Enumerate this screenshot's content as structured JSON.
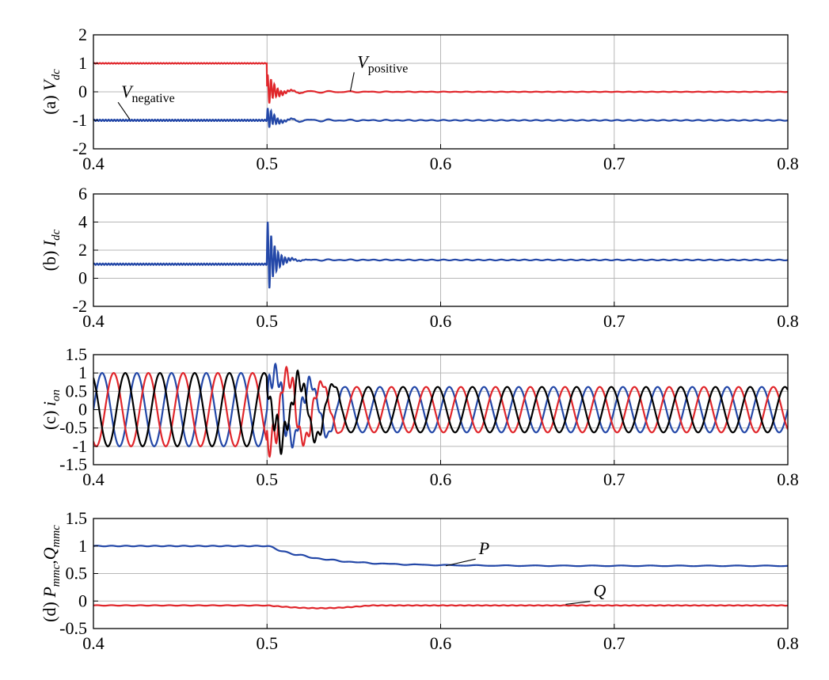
{
  "colors": {
    "red": "#e0262b",
    "blue": "#2448a8",
    "black": "#000000",
    "grid": "#b7b7b7"
  },
  "chart_data": [
    {
      "type": "line",
      "id": "a",
      "ylabel": {
        "prefix": "(a) ",
        "main": "V",
        "sub": "dc"
      },
      "xlim": [
        0.4,
        0.8
      ],
      "ylim": [
        -2,
        2
      ],
      "xticks": [
        0.4,
        0.5,
        0.6,
        0.7,
        0.8
      ],
      "xtick_labels": [
        "0.4",
        "0.5",
        "0.6",
        "0.7",
        "0.8"
      ],
      "yticks": [
        -2,
        -1,
        0,
        1,
        2
      ],
      "ytick_labels": [
        "-2",
        "-1",
        "0",
        "1",
        "2"
      ],
      "grid": true,
      "series": [
        {
          "name": "positive",
          "color": "red",
          "pre": 1.0,
          "post": 0.0,
          "ripple": 0.012,
          "ringAmp": 0.65,
          "ringDecay": 0.004,
          "ringFreq": 520
        },
        {
          "name": "negative",
          "color": "blue",
          "pre": -1.0,
          "post": -1.0,
          "ripple": 0.025,
          "ringAmp": 0.45,
          "ringDecay": 0.004,
          "ringFreq": 520
        }
      ],
      "annotations": [
        {
          "main": "V",
          "sub": "positive",
          "x": 0.552,
          "y": 0.85,
          "ax": 0.548,
          "ay": 0.02
        },
        {
          "main": "V",
          "sub": "negative",
          "x": 0.416,
          "y": -0.2,
          "ax": 0.421,
          "ay": -0.97
        }
      ]
    },
    {
      "type": "line",
      "id": "b",
      "ylabel": {
        "prefix": "(b) ",
        "main": "I",
        "sub": "dc"
      },
      "xlim": [
        0.4,
        0.8
      ],
      "ylim": [
        -2,
        6
      ],
      "xticks": [
        0.4,
        0.5,
        0.6,
        0.7,
        0.8
      ],
      "xtick_labels": [
        "0.4",
        "0.5",
        "0.6",
        "0.7",
        "0.8"
      ],
      "yticks": [
        -2,
        0,
        2,
        4,
        6
      ],
      "ytick_labels": [
        "-2",
        "0",
        "2",
        "4",
        "6"
      ],
      "grid": true,
      "series": [
        {
          "name": "Idc",
          "color": "blue",
          "pre": 1.0,
          "post": 1.3,
          "ripple": 0.05,
          "ringAmp": 3.0,
          "ringDecay": 0.004,
          "ringFreq": 500
        }
      ],
      "annotations": []
    },
    {
      "type": "line",
      "id": "c",
      "ylabel": {
        "prefix": "(c) ",
        "main": "i",
        "sub": "on"
      },
      "xlim": [
        0.4,
        0.8
      ],
      "ylim": [
        -1.5,
        1.5
      ],
      "xticks": [
        0.4,
        0.5,
        0.6,
        0.7,
        0.8
      ],
      "xtick_labels": [
        "0.4",
        "0.5",
        "0.6",
        "0.7",
        "0.8"
      ],
      "yticks": [
        -1.5,
        -1,
        -0.5,
        0,
        0.5,
        1,
        1.5
      ],
      "ytick_labels": [
        "-1.5",
        "-1",
        "-0.5",
        "0",
        "0.5",
        "1",
        "1.5"
      ],
      "grid": true,
      "threephase": {
        "freq": 50,
        "preAmp": 1.0,
        "postAmp": 0.62,
        "transientEnd": 0.545
      },
      "series": [
        {
          "name": "a",
          "color": "blue",
          "phase": 0
        },
        {
          "name": "b",
          "color": "red",
          "phase": -2.0944
        },
        {
          "name": "c",
          "color": "black",
          "phase": 2.0944
        }
      ],
      "annotations": []
    },
    {
      "type": "line",
      "id": "d",
      "ylabel": {
        "prefix": "(d) ",
        "main": "P",
        "sub": "mmc",
        "main2": "Q",
        "sub2": "mmc"
      },
      "xlim": [
        0.4,
        0.8
      ],
      "ylim": [
        -0.5,
        1.5
      ],
      "xticks": [
        0.4,
        0.5,
        0.6,
        0.7,
        0.8
      ],
      "xtick_labels": [
        "0.4",
        "0.5",
        "0.6",
        "0.7",
        "0.8"
      ],
      "yticks": [
        -0.5,
        0,
        0.5,
        1,
        1.5
      ],
      "ytick_labels": [
        "-0.5",
        "0",
        "0.5",
        "1",
        "1.5"
      ],
      "grid": true,
      "series": [
        {
          "name": "P",
          "color": "blue",
          "pre": 1.0,
          "post": 0.64,
          "settle": 0.03,
          "ripple": 0.006
        },
        {
          "name": "Q",
          "color": "red",
          "pre": -0.08,
          "post": -0.08,
          "dip": -0.05,
          "ripple": 0.005
        }
      ],
      "annotations": [
        {
          "main": "P",
          "sub": "",
          "x": 0.622,
          "y": 0.85,
          "ax": 0.603,
          "ay": 0.64
        },
        {
          "main": "Q",
          "sub": "",
          "x": 0.688,
          "y": 0.08,
          "ax": 0.672,
          "ay": -0.06
        }
      ]
    }
  ]
}
